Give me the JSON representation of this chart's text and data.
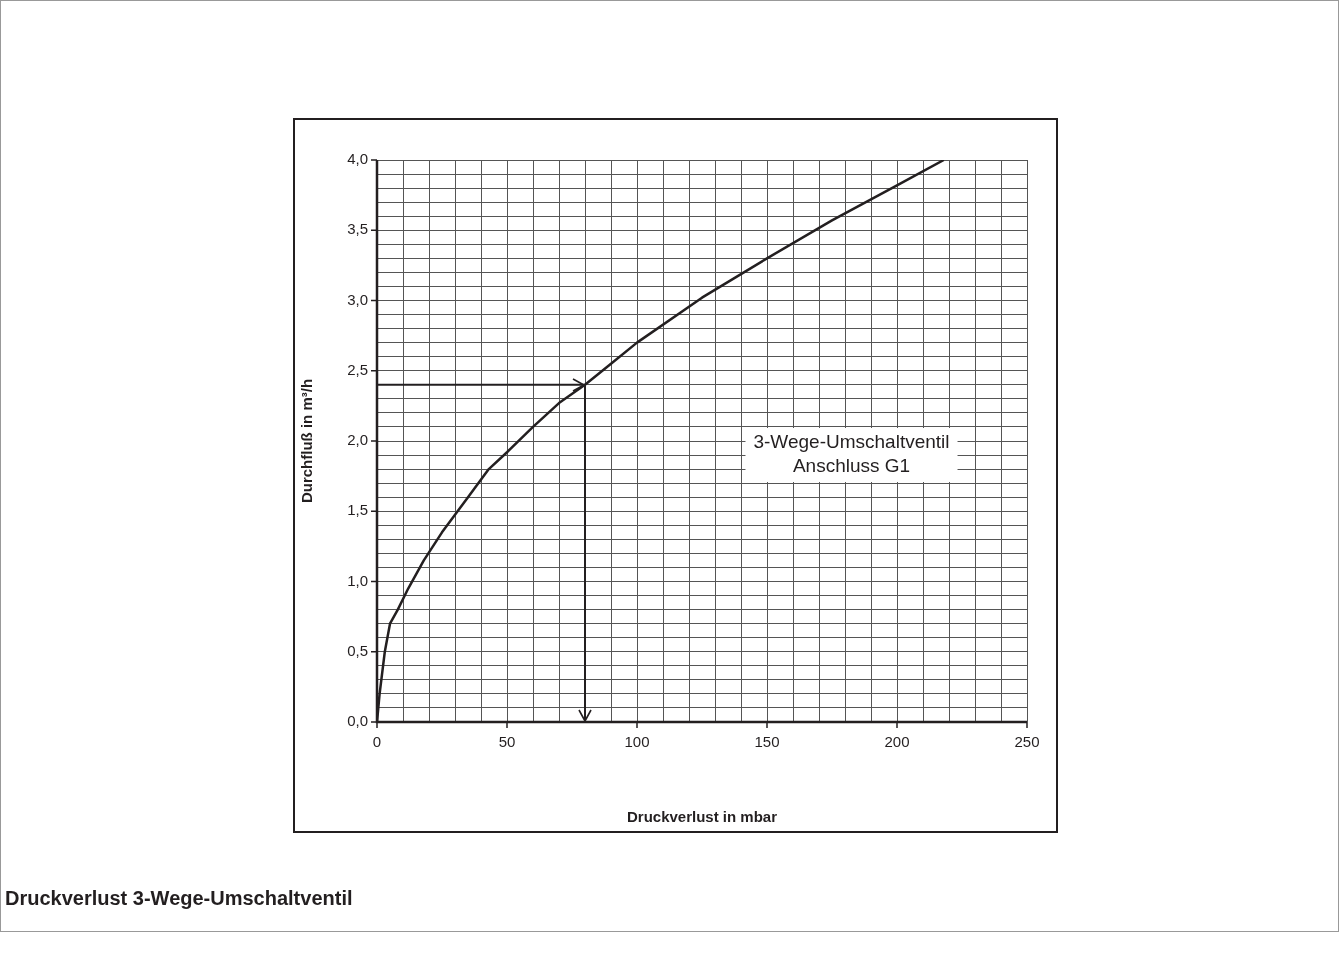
{
  "chart_data": {
    "type": "line",
    "title": "Druckverlust 3-Wege-Umschaltventil",
    "xlabel": "Druckverlust in mbar",
    "ylabel": "Durchfluß in m³/h",
    "x": [
      0,
      1,
      3,
      5,
      8,
      12,
      18,
      25,
      35,
      43,
      50,
      60,
      70,
      80,
      90,
      100,
      125,
      150,
      175,
      200,
      218
    ],
    "values": [
      0,
      0.2,
      0.5,
      0.7,
      0.8,
      0.95,
      1.15,
      1.35,
      1.6,
      1.8,
      1.92,
      2.1,
      2.27,
      2.4,
      2.55,
      2.7,
      3.02,
      3.3,
      3.57,
      3.82,
      4.0
    ],
    "color": "#231f20",
    "marker": "none",
    "line_style": "solid",
    "legend": false,
    "grid": true,
    "xlim": [
      0,
      250
    ],
    "xticks": [
      0,
      {
        "value": 10,
        "label": null
      },
      {
        "value": 20,
        "label": null
      },
      {
        "value": 30,
        "label": null
      },
      {
        "value": 40,
        "label": null
      },
      50,
      {
        "value": 60,
        "label": null
      },
      {
        "value": 70,
        "label": null
      },
      {
        "value": 80,
        "label": null
      },
      {
        "value": 90,
        "label": null
      },
      100,
      {
        "value": 110,
        "label": null
      },
      {
        "value": 120,
        "label": null
      },
      {
        "value": 130,
        "label": null
      },
      {
        "value": 140,
        "label": null
      },
      150,
      {
        "value": 160,
        "label": null
      },
      {
        "value": 170,
        "label": null
      },
      {
        "value": 180,
        "label": null
      },
      {
        "value": 190,
        "label": null
      },
      200,
      {
        "value": 210,
        "label": null
      },
      {
        "value": 220,
        "label": null
      },
      {
        "value": 230,
        "label": null
      },
      {
        "value": 240,
        "label": null
      },
      250
    ],
    "ylim": [
      0,
      4
    ],
    "yticks": [
      {
        "value": 0,
        "label": "0,0"
      },
      {
        "value": 0.1,
        "label": null
      },
      {
        "value": 0.2,
        "label": null
      },
      {
        "value": 0.3,
        "label": null
      },
      {
        "value": 0.4,
        "label": null
      },
      {
        "value": 0.5,
        "label": "0,5"
      },
      {
        "value": 0.6,
        "label": null
      },
      {
        "value": 0.7,
        "label": null
      },
      {
        "value": 0.8,
        "label": null
      },
      {
        "value": 0.9,
        "label": null
      },
      {
        "value": 1,
        "label": "1,0"
      },
      {
        "value": 1.1,
        "label": null
      },
      {
        "value": 1.2,
        "label": null
      },
      {
        "value": 1.3,
        "label": null
      },
      {
        "value": 1.4,
        "label": null
      },
      {
        "value": 1.5,
        "label": "1,5"
      },
      {
        "value": 1.6,
        "label": null
      },
      {
        "value": 1.7,
        "label": null
      },
      {
        "value": 1.8,
        "label": null
      },
      {
        "value": 1.9,
        "label": null
      },
      {
        "value": 2,
        "label": "2,0"
      },
      {
        "value": 2.1,
        "label": null
      },
      {
        "value": 2.2,
        "label": null
      },
      {
        "value": 2.3,
        "label": null
      },
      {
        "value": 2.4,
        "label": null
      },
      {
        "value": 2.5,
        "label": "2,5"
      },
      {
        "value": 2.6,
        "label": null
      },
      {
        "value": 2.7,
        "label": null
      },
      {
        "value": 2.8,
        "label": null
      },
      {
        "value": 2.9,
        "label": null
      },
      {
        "value": 3,
        "label": "3,0"
      },
      {
        "value": 3.1,
        "label": null
      },
      {
        "value": 3.2,
        "label": null
      },
      {
        "value": 3.3,
        "label": null
      },
      {
        "value": 3.4,
        "label": null
      },
      {
        "value": 3.5,
        "label": "3,5"
      },
      {
        "value": 3.6,
        "label": null
      },
      {
        "value": 3.7,
        "label": null
      },
      {
        "value": 3.8,
        "label": null
      },
      {
        "value": 3.9,
        "label": null
      },
      {
        "value": 4,
        "label": "4,0"
      }
    ],
    "ref_lines": [
      {
        "axis": "y",
        "value": 2.4
      },
      {
        "axis": "x",
        "value": 80
      }
    ],
    "annotations": [
      "3-Wege-Umschaltventil\nAnschluss G1"
    ]
  }
}
